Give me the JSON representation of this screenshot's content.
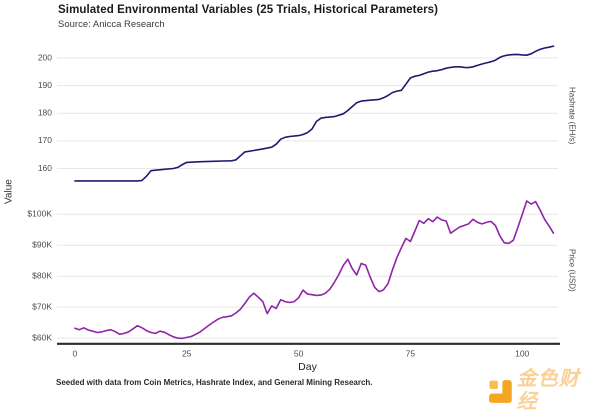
{
  "header": {
    "title": "Simulated Environmental Variables (25 Trials, Historical Parameters)",
    "subtitle": "Source: Anicca Research"
  },
  "axes": {
    "xlabel": "Day",
    "ylabel": "Value",
    "xticks": [
      0,
      25,
      50,
      75,
      100
    ],
    "xlim": [
      -4,
      108
    ],
    "grid": "horizontal-only"
  },
  "footer": {
    "caption": "Seeded with data from Coin Metrics, Hashrate Index, and General Mining Research."
  },
  "watermark": {
    "text": "金色财经",
    "icon": "jinse-logo-icon",
    "color": "#F5A623"
  },
  "colors": {
    "hashrate_line": "#1b1b6f",
    "price_line": "#8e24aa",
    "gridline": "#e7e7e7",
    "axis_line": "#2b2b2b",
    "tick_label": "#4d4d4d"
  },
  "chart_data": [
    {
      "type": "line",
      "name": "Hashrate",
      "strip_label": "Hashrate (EH/s)",
      "color": "#1b1b6f",
      "ylim": [
        151.5,
        206.5
      ],
      "yticks": [
        160,
        170,
        180,
        190,
        200
      ],
      "ytick_labels": [
        "160",
        "170",
        "180",
        "190",
        "200"
      ],
      "points": [
        [
          0,
          155.5
        ],
        [
          2,
          155.5
        ],
        [
          4,
          155.5
        ],
        [
          6,
          155.5
        ],
        [
          8,
          155.5
        ],
        [
          10,
          155.5
        ],
        [
          12,
          155.5
        ],
        [
          14,
          155.5
        ],
        [
          15,
          155.7
        ],
        [
          16,
          157.2
        ],
        [
          17,
          159.2
        ],
        [
          18,
          159.4
        ],
        [
          20,
          159.7
        ],
        [
          22,
          160.0
        ],
        [
          23,
          160.4
        ],
        [
          24,
          161.4
        ],
        [
          25,
          162.2
        ],
        [
          27,
          162.4
        ],
        [
          29,
          162.5
        ],
        [
          31,
          162.6
        ],
        [
          33,
          162.7
        ],
        [
          35,
          162.8
        ],
        [
          36,
          163.1
        ],
        [
          37,
          164.6
        ],
        [
          38,
          166.0
        ],
        [
          40,
          166.5
        ],
        [
          42,
          167.1
        ],
        [
          44,
          167.7
        ],
        [
          45,
          168.8
        ],
        [
          46,
          170.6
        ],
        [
          47,
          171.3
        ],
        [
          48,
          171.6
        ],
        [
          50,
          171.9
        ],
        [
          51,
          172.3
        ],
        [
          52,
          173.0
        ],
        [
          53,
          174.3
        ],
        [
          54,
          177.0
        ],
        [
          55,
          178.2
        ],
        [
          56,
          178.5
        ],
        [
          58,
          178.8
        ],
        [
          60,
          179.8
        ],
        [
          61,
          181.0
        ],
        [
          62,
          182.4
        ],
        [
          63,
          183.8
        ],
        [
          64,
          184.4
        ],
        [
          66,
          184.7
        ],
        [
          68,
          185.0
        ],
        [
          69,
          185.6
        ],
        [
          70,
          186.4
        ],
        [
          71,
          187.5
        ],
        [
          72,
          188.0
        ],
        [
          73,
          188.3
        ],
        [
          74,
          190.5
        ],
        [
          75,
          192.8
        ],
        [
          76,
          193.4
        ],
        [
          77,
          193.7
        ],
        [
          78,
          194.3
        ],
        [
          79,
          194.9
        ],
        [
          80,
          195.2
        ],
        [
          81,
          195.4
        ],
        [
          82,
          195.8
        ],
        [
          83,
          196.3
        ],
        [
          84,
          196.6
        ],
        [
          85,
          196.8
        ],
        [
          86,
          196.8
        ],
        [
          87,
          196.6
        ],
        [
          88,
          196.5
        ],
        [
          89,
          196.8
        ],
        [
          90,
          197.3
        ],
        [
          91,
          197.8
        ],
        [
          92,
          198.2
        ],
        [
          93,
          198.6
        ],
        [
          94,
          199.2
        ],
        [
          95,
          200.2
        ],
        [
          96,
          200.8
        ],
        [
          97,
          201.1
        ],
        [
          98,
          201.2
        ],
        [
          99,
          201.3
        ],
        [
          100,
          201.1
        ],
        [
          101,
          201.0
        ],
        [
          102,
          201.5
        ],
        [
          103,
          202.4
        ],
        [
          104,
          203.1
        ],
        [
          105,
          203.6
        ],
        [
          106,
          203.9
        ],
        [
          107,
          204.3
        ]
      ]
    },
    {
      "type": "line",
      "name": "Price",
      "strip_label": "Price (USD)",
      "color": "#8e24aa",
      "ylim": [
        58.4,
        105.6
      ],
      "yticks": [
        60,
        70,
        80,
        90,
        100
      ],
      "ytick_labels": [
        "$60K",
        "$70K",
        "$80K",
        "$90K",
        "$100K"
      ],
      "points": [
        [
          0,
          63.2
        ],
        [
          1,
          62.7
        ],
        [
          2,
          63.3
        ],
        [
          3,
          62.6
        ],
        [
          4,
          62.2
        ],
        [
          5,
          61.8
        ],
        [
          6,
          62.0
        ],
        [
          7,
          62.4
        ],
        [
          8,
          62.7
        ],
        [
          9,
          62.1
        ],
        [
          10,
          61.2
        ],
        [
          11,
          61.5
        ],
        [
          12,
          62.0
        ],
        [
          13,
          63.0
        ],
        [
          14,
          64.0
        ],
        [
          15,
          63.3
        ],
        [
          16,
          62.4
        ],
        [
          17,
          61.8
        ],
        [
          18,
          61.5
        ],
        [
          19,
          62.2
        ],
        [
          20,
          61.9
        ],
        [
          21,
          61.1
        ],
        [
          22,
          60.4
        ],
        [
          23,
          60.0
        ],
        [
          24,
          59.9
        ],
        [
          25,
          60.2
        ],
        [
          26,
          60.5
        ],
        [
          27,
          61.2
        ],
        [
          28,
          62.0
        ],
        [
          29,
          63.1
        ],
        [
          30,
          64.2
        ],
        [
          31,
          65.2
        ],
        [
          32,
          66.1
        ],
        [
          33,
          66.7
        ],
        [
          34,
          66.9
        ],
        [
          35,
          67.2
        ],
        [
          36,
          68.1
        ],
        [
          37,
          69.3
        ],
        [
          38,
          71.2
        ],
        [
          39,
          73.2
        ],
        [
          40,
          74.5
        ],
        [
          41,
          73.2
        ],
        [
          42,
          71.8
        ],
        [
          43,
          67.9
        ],
        [
          44,
          70.4
        ],
        [
          45,
          69.6
        ],
        [
          46,
          72.4
        ],
        [
          47,
          71.8
        ],
        [
          48,
          71.5
        ],
        [
          49,
          71.8
        ],
        [
          50,
          73.0
        ],
        [
          51,
          75.5
        ],
        [
          52,
          74.2
        ],
        [
          53,
          74.0
        ],
        [
          54,
          73.8
        ],
        [
          55,
          73.9
        ],
        [
          56,
          74.5
        ],
        [
          57,
          75.8
        ],
        [
          58,
          78.0
        ],
        [
          59,
          80.5
        ],
        [
          60,
          83.5
        ],
        [
          61,
          85.5
        ],
        [
          62,
          82.5
        ],
        [
          63,
          80.4
        ],
        [
          64,
          84.1
        ],
        [
          65,
          83.6
        ],
        [
          66,
          79.8
        ],
        [
          67,
          76.4
        ],
        [
          68,
          75.0
        ],
        [
          69,
          75.6
        ],
        [
          70,
          77.6
        ],
        [
          71,
          82.1
        ],
        [
          72,
          86.1
        ],
        [
          73,
          89.2
        ],
        [
          74,
          92.2
        ],
        [
          75,
          91.2
        ],
        [
          76,
          94.6
        ],
        [
          77,
          98.0
        ],
        [
          78,
          97.1
        ],
        [
          79,
          98.6
        ],
        [
          80,
          97.6
        ],
        [
          81,
          99.1
        ],
        [
          82,
          98.2
        ],
        [
          83,
          97.8
        ],
        [
          84,
          93.9
        ],
        [
          85,
          94.9
        ],
        [
          86,
          95.9
        ],
        [
          87,
          96.4
        ],
        [
          88,
          96.9
        ],
        [
          89,
          98.4
        ],
        [
          90,
          97.4
        ],
        [
          91,
          96.9
        ],
        [
          92,
          97.4
        ],
        [
          93,
          97.7
        ],
        [
          94,
          96.4
        ],
        [
          95,
          93.1
        ],
        [
          96,
          90.8
        ],
        [
          97,
          90.6
        ],
        [
          98,
          91.6
        ],
        [
          99,
          95.6
        ],
        [
          100,
          99.9
        ],
        [
          101,
          104.3
        ],
        [
          102,
          103.3
        ],
        [
          103,
          104.1
        ],
        [
          104,
          101.4
        ],
        [
          105,
          98.4
        ],
        [
          106,
          96.2
        ],
        [
          107,
          93.9
        ]
      ]
    }
  ]
}
